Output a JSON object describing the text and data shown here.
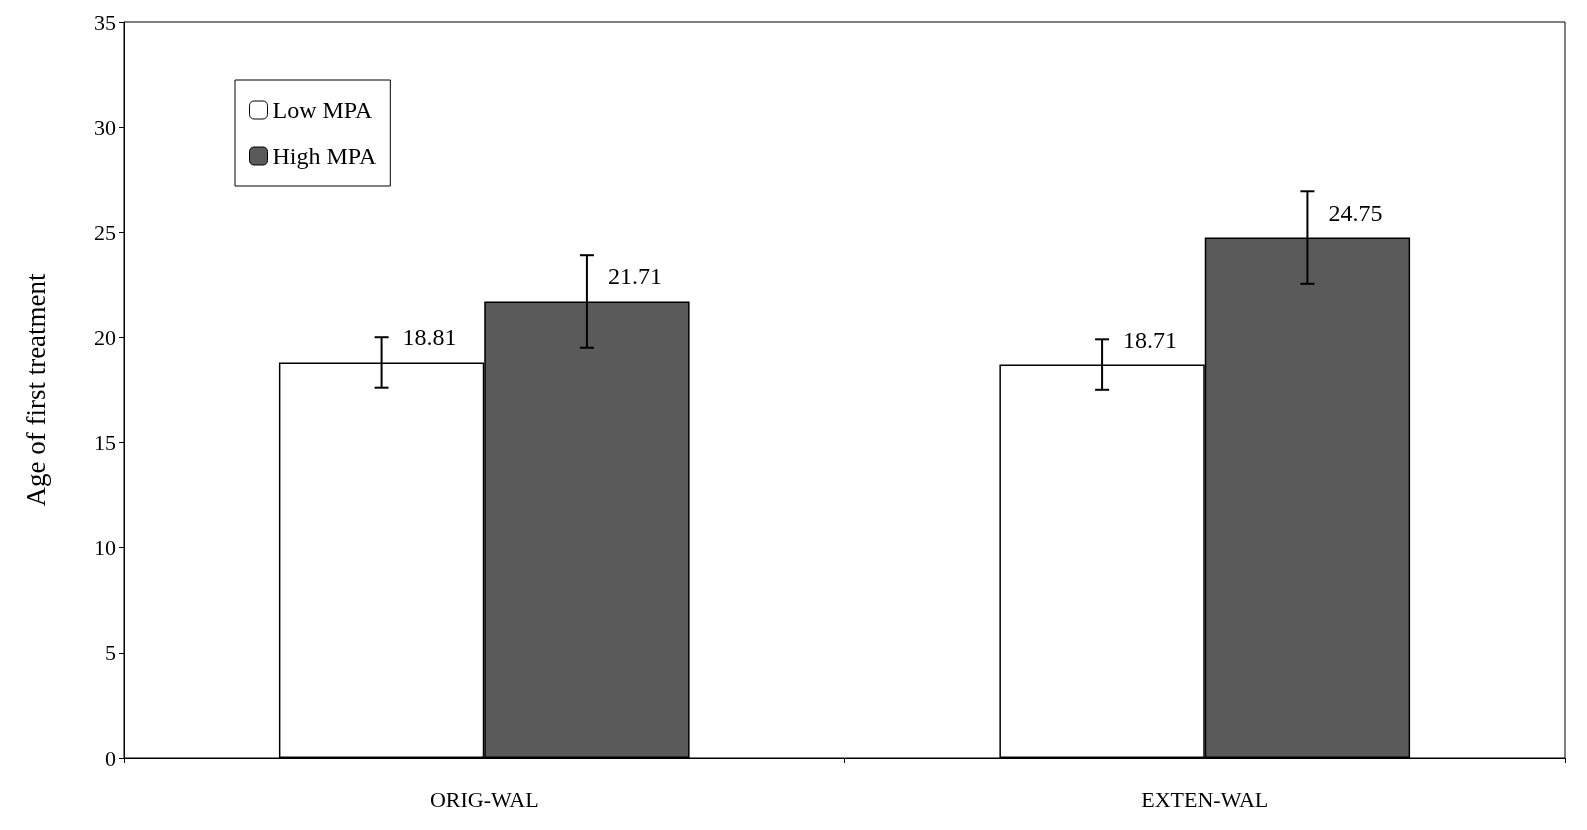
{
  "chart_data": {
    "type": "bar",
    "ylabel": "Age of first treatment",
    "categories": [
      "ORIG-WAL",
      "EXTEN-WAL"
    ],
    "series": [
      {
        "name": "Low MPA",
        "color": "#ffffff",
        "values": [
          18.81,
          18.71
        ],
        "errors": [
          1.2,
          1.2
        ]
      },
      {
        "name": "High MPA",
        "color": "#5a5a5a",
        "values": [
          21.71,
          24.75
        ],
        "errors": [
          2.2,
          2.2
        ]
      }
    ],
    "ylim": [
      0,
      35
    ],
    "yticks": [
      0,
      5,
      10,
      15,
      20,
      25,
      30,
      35
    ],
    "grid": false,
    "legend": "top left",
    "data_labels": true
  }
}
